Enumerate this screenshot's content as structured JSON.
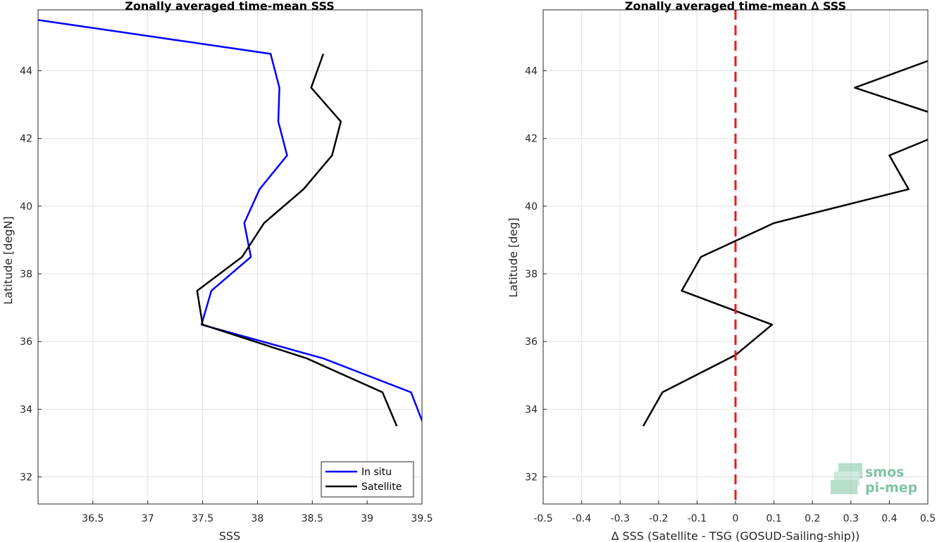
{
  "chart_data": [
    {
      "type": "line",
      "title": "Zonally averaged time-mean SSS",
      "xlabel": "SSS",
      "ylabel": "Latitude [degN]",
      "xlim": [
        36.0,
        39.5
      ],
      "ylim": [
        31.2,
        45.8
      ],
      "xticks": [
        "36.5",
        "37",
        "37.5",
        "38",
        "38.5",
        "39",
        "39.5"
      ],
      "xtick_values": [
        36.5,
        37,
        37.5,
        38,
        38.5,
        39,
        39.5
      ],
      "yticks": [
        "32",
        "34",
        "36",
        "38",
        "40",
        "42",
        "44"
      ],
      "ytick_values": [
        32,
        34,
        36,
        38,
        40,
        42,
        44
      ],
      "grid": true,
      "legend_position": "bottom-right",
      "series": [
        {
          "name": "In situ",
          "color": "#0000ff",
          "points": [
            [
              36.0,
              45.5
            ],
            [
              38.12,
              44.5
            ],
            [
              38.2,
              43.5
            ],
            [
              38.19,
              42.5
            ],
            [
              38.27,
              41.5
            ],
            [
              38.02,
              40.5
            ],
            [
              37.88,
              39.5
            ],
            [
              37.94,
              38.5
            ],
            [
              37.58,
              37.5
            ],
            [
              37.49,
              36.5
            ],
            [
              38.6,
              35.5
            ],
            [
              39.4,
              34.5
            ],
            [
              39.52,
              33.5
            ]
          ]
        },
        {
          "name": "Satellite",
          "color": "#000000",
          "points": [
            [
              38.6,
              44.5
            ],
            [
              38.49,
              43.5
            ],
            [
              38.76,
              42.5
            ],
            [
              38.68,
              41.5
            ],
            [
              38.42,
              40.5
            ],
            [
              38.06,
              39.5
            ],
            [
              37.86,
              38.5
            ],
            [
              37.45,
              37.5
            ],
            [
              37.5,
              36.5
            ],
            [
              38.45,
              35.5
            ],
            [
              39.14,
              34.5
            ],
            [
              39.27,
              33.5
            ]
          ]
        }
      ]
    },
    {
      "type": "line",
      "title": "Zonally averaged time-mean ∆ SSS",
      "xlabel": "∆ SSS (Satellite - TSG (GOSUD-Sailing-ship))",
      "ylabel": "Latitude [deg]",
      "xlim": [
        -0.5,
        0.5
      ],
      "ylim": [
        31.2,
        45.8
      ],
      "xticks": [
        "-0.5",
        "-0.4",
        "-0.3",
        "-0.2",
        "-0.1",
        "0",
        "0.1",
        "0.2",
        "0.3",
        "0.4",
        "0.5"
      ],
      "xtick_values": [
        -0.5,
        -0.4,
        -0.3,
        -0.2,
        -0.1,
        0,
        0.1,
        0.2,
        0.3,
        0.4,
        0.5
      ],
      "yticks": [
        "32",
        "34",
        "36",
        "38",
        "40",
        "42",
        "44"
      ],
      "ytick_values": [
        32,
        34,
        36,
        38,
        40,
        42,
        44
      ],
      "grid": true,
      "reference_line": {
        "x": 0,
        "color": "#e41a1c",
        "style": "dashed"
      },
      "series": [
        {
          "color": "#000000",
          "points": [
            [
              0.55,
              44.5
            ],
            [
              0.31,
              43.5
            ],
            [
              0.55,
              42.6
            ],
            [
              null,
              null
            ],
            [
              0.55,
              42.2
            ],
            [
              0.4,
              41.5
            ],
            [
              0.45,
              40.5
            ],
            [
              0.1,
              39.5
            ],
            [
              -0.09,
              38.5
            ],
            [
              -0.14,
              37.5
            ],
            [
              0.095,
              36.5
            ],
            [
              0.0,
              35.6
            ],
            [
              -0.19,
              34.5
            ],
            [
              -0.24,
              33.5
            ]
          ]
        }
      ]
    }
  ],
  "logo": {
    "line1": "smos",
    "line2": "pi-mep",
    "color": "#7fc4a3"
  }
}
